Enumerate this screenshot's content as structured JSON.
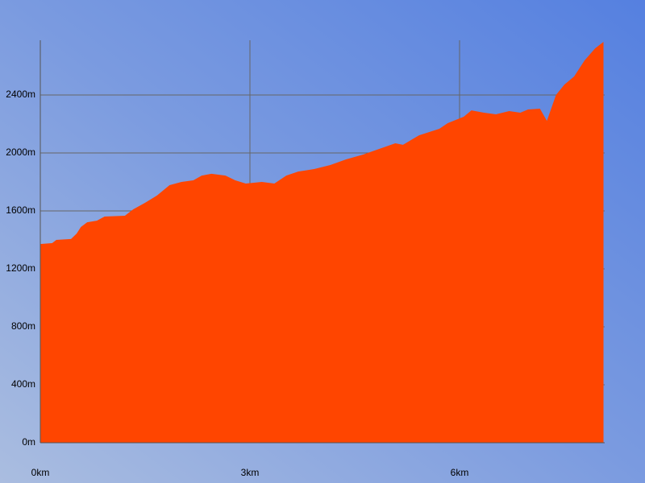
{
  "chart_data": {
    "type": "area",
    "x": [
      0,
      0.17,
      0.23,
      0.44,
      0.52,
      0.58,
      0.67,
      0.81,
      0.92,
      1.21,
      1.33,
      1.5,
      1.67,
      1.85,
      2.02,
      2.19,
      2.31,
      2.45,
      2.65,
      2.79,
      2.94,
      3.17,
      3.35,
      3.52,
      3.69,
      3.92,
      4.15,
      4.38,
      4.62,
      4.85,
      5.08,
      5.19,
      5.42,
      5.71,
      5.83,
      6.06,
      6.17,
      6.35,
      6.52,
      6.71,
      6.87,
      6.98,
      7.15,
      7.25,
      7.38,
      7.5,
      7.64,
      7.79,
      7.94,
      8.06
    ],
    "values": [
      1372,
      1378,
      1400,
      1406,
      1444,
      1489,
      1522,
      1533,
      1561,
      1567,
      1611,
      1656,
      1706,
      1778,
      1800,
      1811,
      1844,
      1856,
      1844,
      1811,
      1789,
      1800,
      1789,
      1844,
      1872,
      1889,
      1917,
      1956,
      1989,
      2028,
      2067,
      2056,
      2122,
      2167,
      2206,
      2250,
      2294,
      2278,
      2267,
      2289,
      2278,
      2300,
      2306,
      2222,
      2400,
      2472,
      2528,
      2639,
      2722,
      2767
    ],
    "color": "#ff4500",
    "xlim": [
      0,
      8.077
    ],
    "ylim": [
      0,
      2778
    ],
    "xticks": [
      {
        "value": 0,
        "label": "0km"
      },
      {
        "value": 3,
        "label": "3km"
      },
      {
        "value": 6,
        "label": "6km"
      }
    ],
    "yticks": [
      {
        "value": 0,
        "label": "0m"
      },
      {
        "value": 400,
        "label": "400m"
      },
      {
        "value": 800,
        "label": "800m"
      },
      {
        "value": 1200,
        "label": "1200m"
      },
      {
        "value": 1600,
        "label": "1600m"
      },
      {
        "value": 2000,
        "label": "2000m"
      },
      {
        "value": 2400,
        "label": "2400m"
      }
    ],
    "grid": true
  }
}
